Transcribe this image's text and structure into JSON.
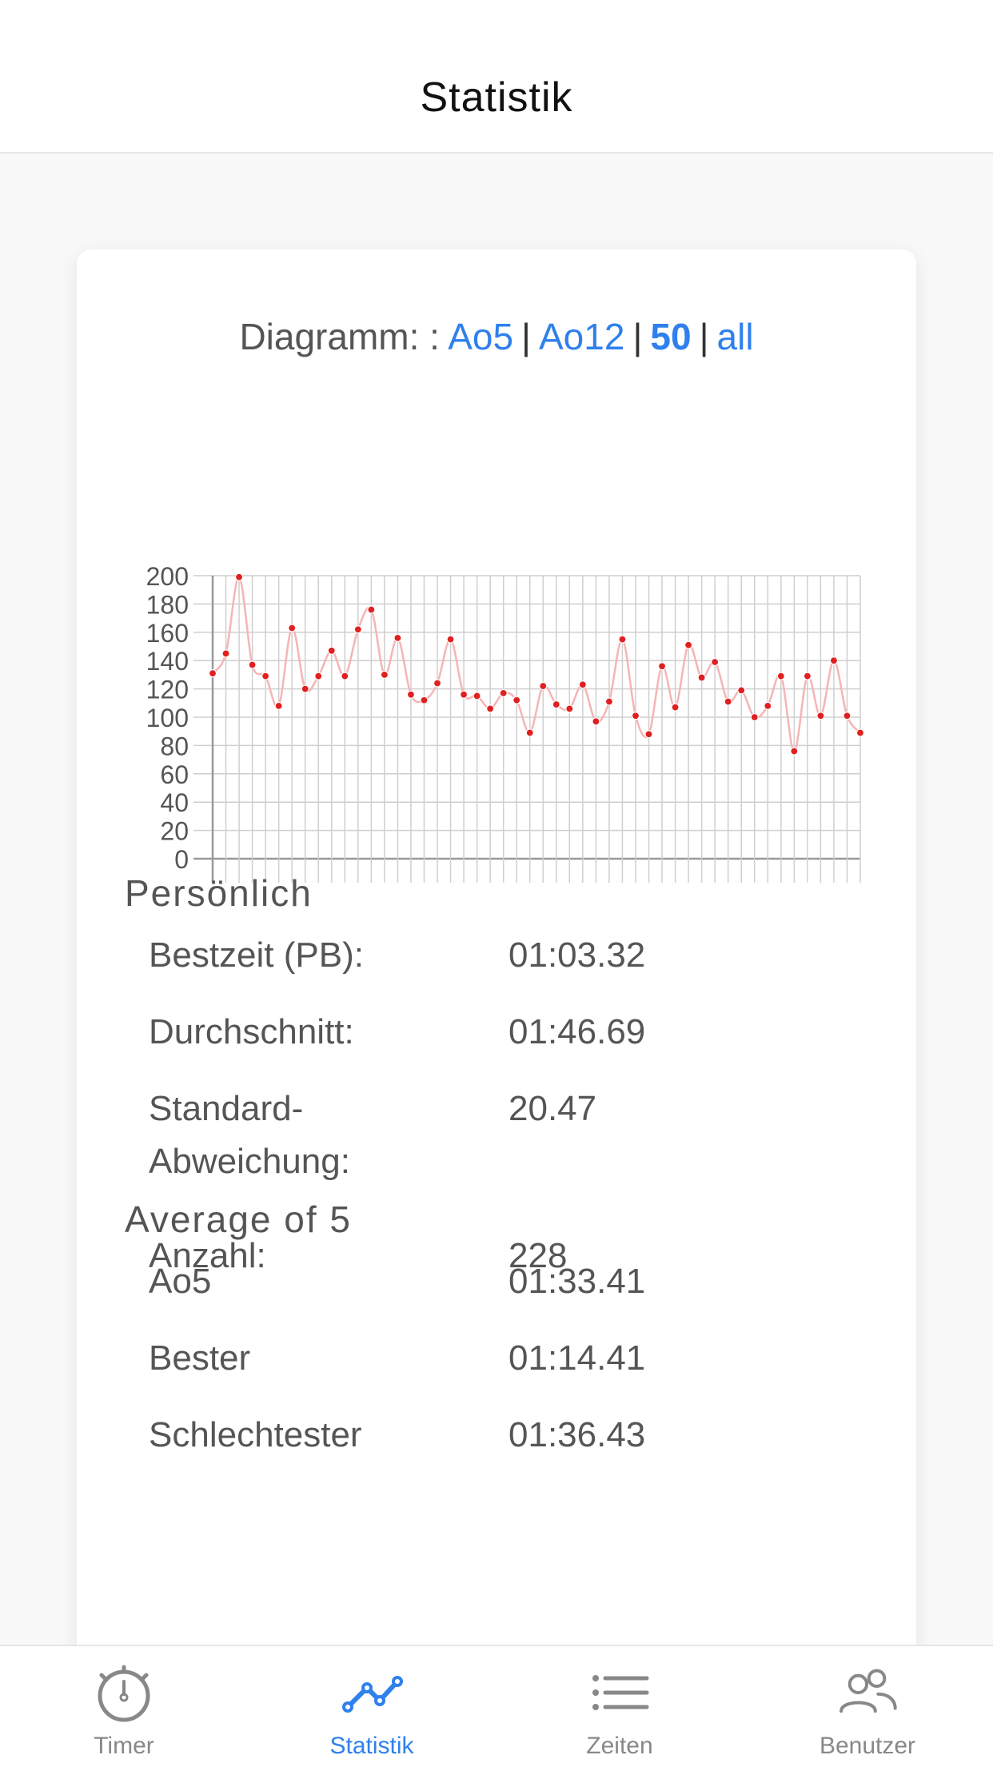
{
  "header": {
    "title": "Statistik"
  },
  "diagram_nav": {
    "prefix": "Diagramm: :",
    "options": [
      "Ao5",
      "Ao12",
      "50",
      "all"
    ],
    "separator": "|",
    "active": "50"
  },
  "chart_data": {
    "type": "line",
    "ylim": [
      0,
      200
    ],
    "yticks": [
      0,
      20,
      40,
      60,
      80,
      100,
      120,
      140,
      160,
      180,
      200
    ],
    "grid": true,
    "series": [
      {
        "values": [
          131,
          145,
          199,
          137,
          129,
          108,
          163,
          120,
          129,
          147,
          129,
          162,
          176,
          130,
          156,
          116,
          112,
          124,
          155,
          116,
          115,
          106,
          117,
          112,
          89,
          122,
          109,
          106,
          123,
          97,
          111,
          155,
          101,
          88,
          136,
          107,
          151,
          128,
          139,
          111,
          119,
          100,
          108,
          129,
          76,
          129,
          101,
          140,
          101,
          89
        ]
      }
    ],
    "colors": {
      "line": "#f5b5b5",
      "point": "#e02020",
      "grid": "#cfcfcf",
      "axis": "#999999",
      "tick_text": "#555555"
    }
  },
  "sections": [
    {
      "title": "Persönlich",
      "rows": [
        {
          "label": "Bestzeit (PB):",
          "value": "01:03.32"
        },
        {
          "label": "Durchschnitt:",
          "value": "01:46.69"
        },
        {
          "label": "Standard-\nAbweichung:",
          "value": "20.47"
        },
        {
          "label": "Anzahl:",
          "value": "228"
        }
      ]
    },
    {
      "title": "Average of 5",
      "rows": [
        {
          "label": "Ao5",
          "value": "01:33.41"
        },
        {
          "label": "Bester",
          "value": "01:14.41"
        },
        {
          "label": "Schlechtester",
          "value": "01:36.43"
        }
      ]
    }
  ],
  "bottom_nav": {
    "items": [
      {
        "label": "Timer",
        "icon": "stopwatch-icon"
      },
      {
        "label": "Statistik",
        "icon": "chart-line-icon"
      },
      {
        "label": "Zeiten",
        "icon": "list-icon"
      },
      {
        "label": "Benutzer",
        "icon": "users-icon"
      }
    ],
    "active": "Statistik",
    "colors": {
      "active": "#2f80ed",
      "inactive": "#888888"
    }
  }
}
